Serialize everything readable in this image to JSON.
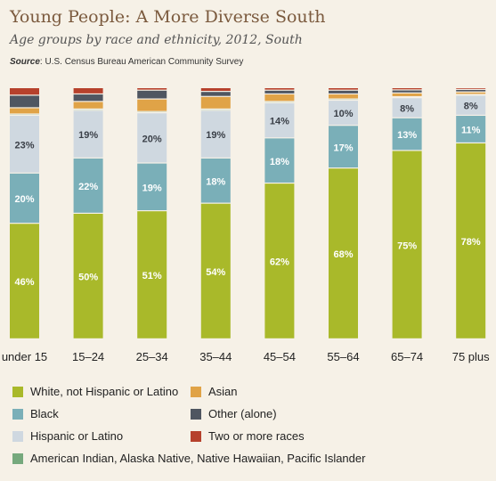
{
  "title": "Young People: A More Diverse South",
  "subtitle": "Age groups by race and ethnicity, 2012, South",
  "source": {
    "label": "Source",
    "text": "U.S. Census Bureau American Community Survey"
  },
  "chart_data": {
    "type": "bar",
    "stacked": true,
    "ylim": [
      0,
      100
    ],
    "grid": false,
    "legend_position": "bottom",
    "categories": [
      "under 15",
      "15–24",
      "25–34",
      "35–44",
      "45–54",
      "55–64",
      "65–74",
      "75 plus"
    ],
    "series": [
      {
        "name": "White, not Hispanic or Latino",
        "color": "#a9b92a",
        "values": [
          46,
          50,
          51,
          54,
          62,
          68,
          75,
          78
        ]
      },
      {
        "name": "Black",
        "color": "#7aafb8",
        "values": [
          20,
          22,
          19,
          18,
          18,
          17,
          13,
          11
        ]
      },
      {
        "name": "Hispanic or Latino",
        "color": "#cfd8e0",
        "values": [
          23,
          19,
          20,
          19,
          14,
          10,
          8,
          8
        ]
      },
      {
        "name": "American Indian, Alaska Native, Native Hawaiian, Pacific Islander",
        "color": "#76a97d",
        "values": [
          0.5,
          0.5,
          0.5,
          0.5,
          0.5,
          0.5,
          0.4,
          0.3
        ]
      },
      {
        "name": "Asian",
        "color": "#e0a347",
        "values": [
          2.5,
          3,
          5,
          5,
          3,
          2,
          1.5,
          1
        ]
      },
      {
        "name": "Other (alone)",
        "color": "#4f5661",
        "values": [
          5,
          3,
          3.5,
          2,
          1.5,
          1.5,
          1.2,
          1
        ]
      },
      {
        "name": "Two or more races",
        "color": "#b6412c",
        "values": [
          3,
          2.5,
          1,
          1.5,
          1,
          1,
          0.9,
          0.7
        ]
      }
    ],
    "labeled_series": [
      "White, not Hispanic or Latino",
      "Black",
      "Hispanic or Latino"
    ],
    "value_suffix": "%"
  },
  "legend_order": [
    "White, not Hispanic or Latino",
    "Asian",
    "Black",
    "Other (alone)",
    "Hispanic or Latino",
    "Two or more races",
    "American Indian, Alaska Native, Native Hawaiian, Pacific Islander"
  ]
}
